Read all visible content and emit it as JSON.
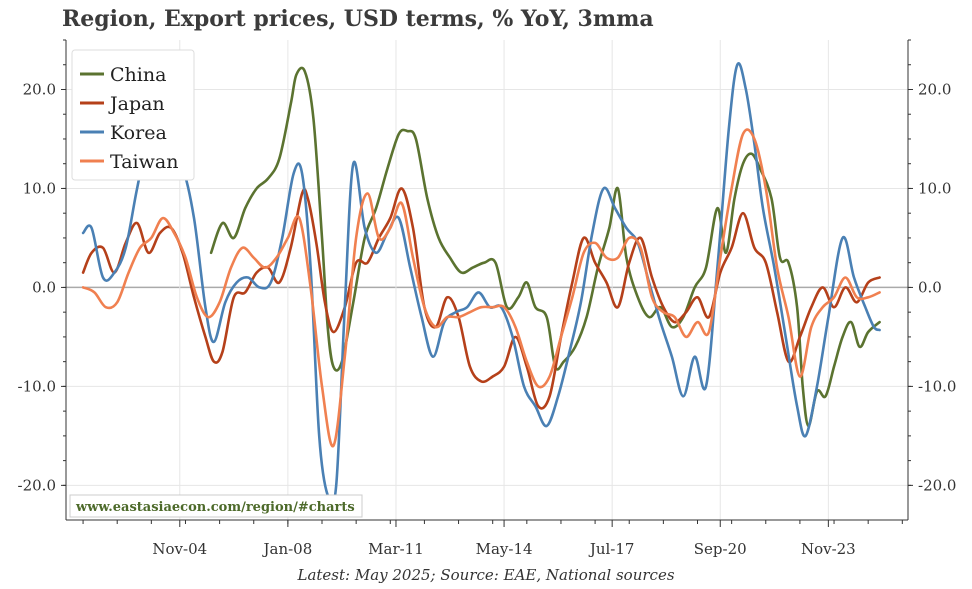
{
  "title": "Region, Export prices, USD terms, % YoY, 3mma",
  "footnote": "Latest: May 2025; Source: EAE, National sources",
  "source_url": "www.eastasiaecon.com/region/#charts",
  "colors": {
    "China": "#5b7330",
    "Japan": "#b5401a",
    "Korea": "#4a80b4",
    "Taiwan": "#f08050",
    "grid": "#e6e6e6",
    "zero": "#aaaaaa"
  },
  "chart_data": {
    "type": "line",
    "title": "Region, Export prices, USD terms, % YoY, 3mma",
    "xlabel": "",
    "ylabel": "",
    "x_tick_labels": [
      "Nov-04",
      "Jan-08",
      "Mar-11",
      "May-14",
      "Jul-17",
      "Sep-20",
      "Nov-23"
    ],
    "y_tick_labels_left": [
      "-20.0",
      "-10.0",
      "0.0",
      "10.0",
      "20.0"
    ],
    "y_tick_labels_right": [
      "-20.0",
      "-10.0",
      "0.0",
      "10.0",
      "20.0"
    ],
    "x_range": [
      "2001-07",
      "2026-03"
    ],
    "ylim": [
      -23.5,
      25
    ],
    "grid": true,
    "legend_position": "top-left",
    "series": [
      {
        "name": "China",
        "points": [
          [
            "2005-10",
            3.5
          ],
          [
            "2006-02",
            6.5
          ],
          [
            "2006-06",
            5.0
          ],
          [
            "2006-10",
            8.0
          ],
          [
            "2007-02",
            10.0
          ],
          [
            "2007-06",
            11.0
          ],
          [
            "2007-10",
            13.0
          ],
          [
            "2008-02",
            18.5
          ],
          [
            "2008-04",
            21.5
          ],
          [
            "2008-07",
            21.8
          ],
          [
            "2008-10",
            17.0
          ],
          [
            "2009-01",
            5.0
          ],
          [
            "2009-03",
            -4.0
          ],
          [
            "2009-05",
            -8.0
          ],
          [
            "2009-08",
            -7.5
          ],
          [
            "2009-12",
            -1.5
          ],
          [
            "2010-04",
            5.0
          ],
          [
            "2010-08",
            8.0
          ],
          [
            "2010-12",
            12.0
          ],
          [
            "2011-04",
            15.5
          ],
          [
            "2011-07",
            15.8
          ],
          [
            "2011-10",
            15.0
          ],
          [
            "2012-02",
            9.0
          ],
          [
            "2012-06",
            5.0
          ],
          [
            "2012-10",
            3.0
          ],
          [
            "2013-02",
            1.5
          ],
          [
            "2013-06",
            2.0
          ],
          [
            "2013-10",
            2.5
          ],
          [
            "2014-02",
            2.5
          ],
          [
            "2014-06",
            -2.0
          ],
          [
            "2014-10",
            -1.0
          ],
          [
            "2015-01",
            0.5
          ],
          [
            "2015-04",
            -2.0
          ],
          [
            "2015-08",
            -3.0
          ],
          [
            "2015-11",
            -8.0
          ],
          [
            "2016-02",
            -7.5
          ],
          [
            "2016-06",
            -6.0
          ],
          [
            "2016-10",
            -3.0
          ],
          [
            "2017-02",
            2.0
          ],
          [
            "2017-06",
            6.0
          ],
          [
            "2017-09",
            10.0
          ],
          [
            "2017-12",
            3.0
          ],
          [
            "2018-04",
            -1.0
          ],
          [
            "2018-08",
            -3.0
          ],
          [
            "2018-12",
            -2.0
          ],
          [
            "2019-04",
            -4.0
          ],
          [
            "2019-08",
            -3.0
          ],
          [
            "2019-12",
            0.0
          ],
          [
            "2020-04",
            2.0
          ],
          [
            "2020-08",
            8.0
          ],
          [
            "2020-11",
            3.5
          ],
          [
            "2021-02",
            9.0
          ],
          [
            "2021-05",
            12.5
          ],
          [
            "2021-08",
            13.5
          ],
          [
            "2021-11",
            12.0
          ],
          [
            "2022-03",
            9.0
          ],
          [
            "2022-06",
            3.0
          ],
          [
            "2022-09",
            2.5
          ],
          [
            "2022-12",
            -2.0
          ],
          [
            "2023-02",
            -10.0
          ],
          [
            "2023-04",
            -14.0
          ],
          [
            "2023-07",
            -10.5
          ],
          [
            "2023-10",
            -11.0
          ],
          [
            "2024-01",
            -8.0
          ],
          [
            "2024-04",
            -5.0
          ],
          [
            "2024-07",
            -3.5
          ],
          [
            "2024-10",
            -6.0
          ],
          [
            "2025-01",
            -4.5
          ],
          [
            "2025-05",
            -3.5
          ]
        ]
      },
      {
        "name": "Japan",
        "points": [
          [
            "2002-01",
            1.5
          ],
          [
            "2002-04",
            3.5
          ],
          [
            "2002-08",
            4.0
          ],
          [
            "2002-12",
            1.5
          ],
          [
            "2003-04",
            4.5
          ],
          [
            "2003-08",
            6.5
          ],
          [
            "2003-12",
            3.5
          ],
          [
            "2004-04",
            5.5
          ],
          [
            "2004-08",
            6.0
          ],
          [
            "2004-12",
            3.5
          ],
          [
            "2005-04",
            -1.0
          ],
          [
            "2005-08",
            -5.0
          ],
          [
            "2005-11",
            -7.5
          ],
          [
            "2006-02",
            -6.5
          ],
          [
            "2006-06",
            -1.0
          ],
          [
            "2006-10",
            -0.5
          ],
          [
            "2007-02",
            1.5
          ],
          [
            "2007-06",
            2.0
          ],
          [
            "2007-10",
            0.5
          ],
          [
            "2008-02",
            4.0
          ],
          [
            "2008-06",
            9.5
          ],
          [
            "2008-08",
            9.0
          ],
          [
            "2008-11",
            4.5
          ],
          [
            "2009-02",
            -1.5
          ],
          [
            "2009-05",
            -4.5
          ],
          [
            "2009-09",
            -2.0
          ],
          [
            "2010-01",
            2.5
          ],
          [
            "2010-05",
            2.5
          ],
          [
            "2010-09",
            5.0
          ],
          [
            "2011-01",
            7.0
          ],
          [
            "2011-05",
            10.0
          ],
          [
            "2011-09",
            6.0
          ],
          [
            "2012-01",
            -2.0
          ],
          [
            "2012-05",
            -4.0
          ],
          [
            "2012-09",
            -1.0
          ],
          [
            "2013-01",
            -3.0
          ],
          [
            "2013-05",
            -8.0
          ],
          [
            "2013-09",
            -9.5
          ],
          [
            "2014-01",
            -9.0
          ],
          [
            "2014-05",
            -8.0
          ],
          [
            "2014-09",
            -5.0
          ],
          [
            "2015-01",
            -8.0
          ],
          [
            "2015-05",
            -12.0
          ],
          [
            "2015-09",
            -11.0
          ],
          [
            "2016-01",
            -5.0
          ],
          [
            "2016-05",
            0.5
          ],
          [
            "2016-09",
            5.0
          ],
          [
            "2017-01",
            2.5
          ],
          [
            "2017-05",
            0.5
          ],
          [
            "2017-09",
            -2.0
          ],
          [
            "2018-01",
            2.5
          ],
          [
            "2018-05",
            5.0
          ],
          [
            "2018-09",
            1.0
          ],
          [
            "2019-01",
            -2.0
          ],
          [
            "2019-05",
            -3.5
          ],
          [
            "2019-09",
            -2.5
          ],
          [
            "2020-01",
            -1.0
          ],
          [
            "2020-05",
            -3.0
          ],
          [
            "2020-09",
            1.5
          ],
          [
            "2021-01",
            4.0
          ],
          [
            "2021-05",
            7.5
          ],
          [
            "2021-09",
            4.0
          ],
          [
            "2022-01",
            2.5
          ],
          [
            "2022-05",
            -2.5
          ],
          [
            "2022-09",
            -7.5
          ],
          [
            "2023-01",
            -5.0
          ],
          [
            "2023-05",
            -2.0
          ],
          [
            "2023-09",
            0.0
          ],
          [
            "2024-01",
            -2.0
          ],
          [
            "2024-05",
            0.0
          ],
          [
            "2024-09",
            -1.5
          ],
          [
            "2025-01",
            0.5
          ],
          [
            "2025-05",
            1.0
          ]
        ]
      },
      {
        "name": "Korea",
        "points": [
          [
            "2002-01",
            5.5
          ],
          [
            "2002-04",
            6.0
          ],
          [
            "2002-08",
            1.0
          ],
          [
            "2002-12",
            1.5
          ],
          [
            "2003-04",
            4.0
          ],
          [
            "2003-08",
            10.0
          ],
          [
            "2003-12",
            15.0
          ],
          [
            "2004-04",
            14.0
          ],
          [
            "2004-08",
            12.5
          ],
          [
            "2004-12",
            12.0
          ],
          [
            "2005-04",
            7.0
          ],
          [
            "2005-08",
            -2.0
          ],
          [
            "2005-11",
            -5.5
          ],
          [
            "2006-03",
            -1.5
          ],
          [
            "2006-07",
            0.5
          ],
          [
            "2006-11",
            1.0
          ],
          [
            "2007-03",
            0.0
          ],
          [
            "2007-07",
            0.5
          ],
          [
            "2007-11",
            5.0
          ],
          [
            "2008-03",
            11.5
          ],
          [
            "2008-06",
            11.5
          ],
          [
            "2008-09",
            2.0
          ],
          [
            "2008-12",
            -15.0
          ],
          [
            "2009-03",
            -21.0
          ],
          [
            "2009-06",
            -20.0
          ],
          [
            "2009-09",
            -2.0
          ],
          [
            "2009-12",
            12.5
          ],
          [
            "2010-04",
            6.0
          ],
          [
            "2010-08",
            3.5
          ],
          [
            "2010-12",
            5.5
          ],
          [
            "2011-04",
            7.0
          ],
          [
            "2011-08",
            2.0
          ],
          [
            "2011-12",
            -3.0
          ],
          [
            "2012-04",
            -7.0
          ],
          [
            "2012-08",
            -3.5
          ],
          [
            "2012-12",
            -2.5
          ],
          [
            "2013-04",
            -2.0
          ],
          [
            "2013-08",
            -0.5
          ],
          [
            "2013-12",
            -2.0
          ],
          [
            "2014-04",
            -2.0
          ],
          [
            "2014-08",
            -5.0
          ],
          [
            "2014-12",
            -10.0
          ],
          [
            "2015-04",
            -12.0
          ],
          [
            "2015-08",
            -14.0
          ],
          [
            "2015-12",
            -11.0
          ],
          [
            "2016-04",
            -6.5
          ],
          [
            "2016-08",
            -1.5
          ],
          [
            "2016-12",
            5.5
          ],
          [
            "2017-04",
            10.0
          ],
          [
            "2017-08",
            8.0
          ],
          [
            "2017-12",
            6.0
          ],
          [
            "2018-04",
            4.5
          ],
          [
            "2018-08",
            0.5
          ],
          [
            "2018-12",
            -3.5
          ],
          [
            "2019-04",
            -7.0
          ],
          [
            "2019-08",
            -11.0
          ],
          [
            "2019-12",
            -7.0
          ],
          [
            "2020-04",
            -10.0
          ],
          [
            "2020-08",
            2.0
          ],
          [
            "2020-12",
            16.0
          ],
          [
            "2021-03",
            22.5
          ],
          [
            "2021-06",
            20.0
          ],
          [
            "2021-09",
            14.5
          ],
          [
            "2021-12",
            8.0
          ],
          [
            "2022-04",
            2.0
          ],
          [
            "2022-08",
            -5.0
          ],
          [
            "2022-12",
            -12.0
          ],
          [
            "2023-03",
            -15.0
          ],
          [
            "2023-07",
            -10.0
          ],
          [
            "2023-11",
            -3.0
          ],
          [
            "2024-04",
            5.0
          ],
          [
            "2024-08",
            1.0
          ],
          [
            "2024-12",
            -2.0
          ],
          [
            "2025-03",
            -4.0
          ],
          [
            "2025-05",
            -4.3
          ]
        ]
      },
      {
        "name": "Taiwan",
        "points": [
          [
            "2002-01",
            0.0
          ],
          [
            "2002-05",
            -0.5
          ],
          [
            "2002-09",
            -2.0
          ],
          [
            "2003-01",
            -1.5
          ],
          [
            "2003-05",
            1.5
          ],
          [
            "2003-09",
            4.0
          ],
          [
            "2004-01",
            5.0
          ],
          [
            "2004-05",
            7.0
          ],
          [
            "2004-09",
            5.5
          ],
          [
            "2005-01",
            3.0
          ],
          [
            "2005-05",
            -1.0
          ],
          [
            "2005-09",
            -3.0
          ],
          [
            "2006-01",
            -1.5
          ],
          [
            "2006-05",
            2.0
          ],
          [
            "2006-09",
            4.0
          ],
          [
            "2007-01",
            3.0
          ],
          [
            "2007-05",
            2.0
          ],
          [
            "2007-09",
            3.0
          ],
          [
            "2008-01",
            5.0
          ],
          [
            "2008-05",
            7.0
          ],
          [
            "2008-09",
            0.0
          ],
          [
            "2009-01",
            -10.0
          ],
          [
            "2009-05",
            -16.0
          ],
          [
            "2009-09",
            -7.0
          ],
          [
            "2010-01",
            5.0
          ],
          [
            "2010-05",
            9.5
          ],
          [
            "2010-09",
            5.0
          ],
          [
            "2011-01",
            6.0
          ],
          [
            "2011-05",
            8.5
          ],
          [
            "2011-09",
            3.0
          ],
          [
            "2012-01",
            -2.0
          ],
          [
            "2012-05",
            -4.0
          ],
          [
            "2012-09",
            -3.0
          ],
          [
            "2013-01",
            -3.0
          ],
          [
            "2013-05",
            -2.5
          ],
          [
            "2013-09",
            -2.0
          ],
          [
            "2014-01",
            -2.0
          ],
          [
            "2014-05",
            -2.0
          ],
          [
            "2014-09",
            -4.0
          ],
          [
            "2015-01",
            -7.5
          ],
          [
            "2015-05",
            -10.0
          ],
          [
            "2015-09",
            -9.0
          ],
          [
            "2016-01",
            -5.0
          ],
          [
            "2016-05",
            -1.0
          ],
          [
            "2016-09",
            3.5
          ],
          [
            "2017-01",
            4.5
          ],
          [
            "2017-05",
            3.0
          ],
          [
            "2017-09",
            3.0
          ],
          [
            "2018-01",
            5.0
          ],
          [
            "2018-05",
            4.0
          ],
          [
            "2018-09",
            -1.0
          ],
          [
            "2019-01",
            -2.5
          ],
          [
            "2019-05",
            -3.0
          ],
          [
            "2019-09",
            -5.0
          ],
          [
            "2020-01",
            -3.5
          ],
          [
            "2020-05",
            -4.5
          ],
          [
            "2020-09",
            3.0
          ],
          [
            "2021-01",
            10.0
          ],
          [
            "2021-05",
            15.5
          ],
          [
            "2021-09",
            15.0
          ],
          [
            "2022-01",
            10.0
          ],
          [
            "2022-05",
            2.0
          ],
          [
            "2022-09",
            -3.0
          ],
          [
            "2023-01",
            -9.0
          ],
          [
            "2023-05",
            -4.0
          ],
          [
            "2023-09",
            -2.0
          ],
          [
            "2024-01",
            -1.0
          ],
          [
            "2024-05",
            1.0
          ],
          [
            "2024-09",
            -1.0
          ],
          [
            "2025-01",
            -1.0
          ],
          [
            "2025-05",
            -0.5
          ]
        ]
      }
    ]
  }
}
